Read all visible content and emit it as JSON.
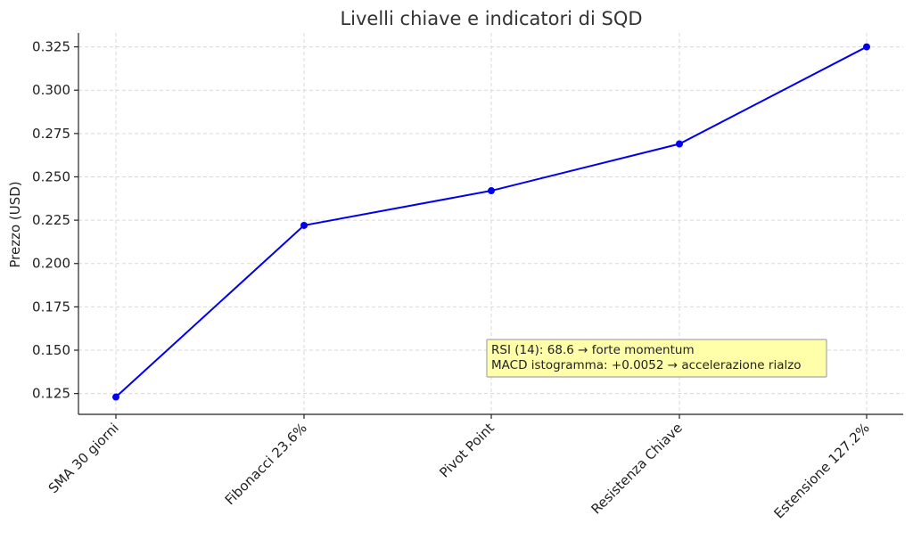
{
  "chart_data": {
    "type": "line",
    "title": "Livelli chiave e indicatori di SQD",
    "xlabel": "",
    "ylabel": "Prezzo (USD)",
    "categories": [
      "SMA 30 giorni",
      "Fibonacci 23.6%",
      "Pivot Point",
      "Resistenza Chiave",
      "Estensione 127.2%"
    ],
    "series": [
      {
        "values": [
          0.123,
          0.222,
          0.242,
          0.269,
          0.325
        ],
        "color": "#0000ee"
      }
    ],
    "yticks": [
      "0.125",
      "0.150",
      "0.175",
      "0.200",
      "0.225",
      "0.250",
      "0.275",
      "0.300",
      "0.325"
    ],
    "ylim": [
      0.113,
      0.333
    ],
    "grid": true,
    "annotation": {
      "lines": [
        "RSI (14): 68.6 → forte momentum",
        "MACD istogramma: +0.0052 → accelerazione rialzo"
      ],
      "background": "#ffffaa",
      "border": "#a8a8a8"
    }
  }
}
